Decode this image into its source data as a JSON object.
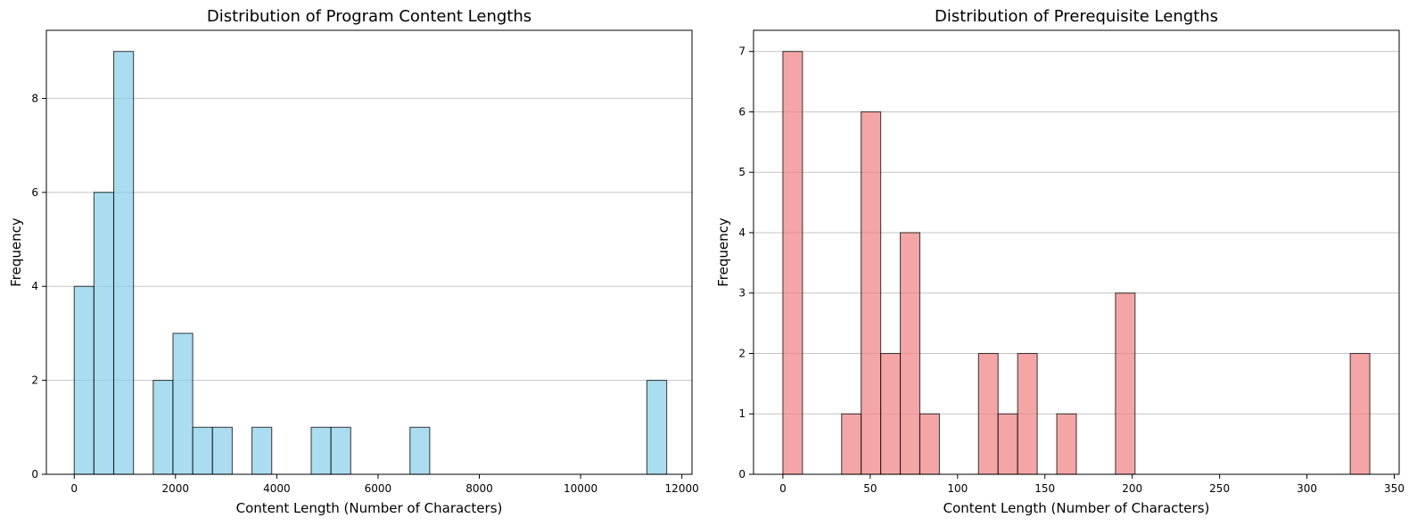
{
  "chart_data": [
    {
      "type": "bar",
      "title": "Distribution of Program Content Lengths",
      "xlabel": "Content Length (Number of Characters)",
      "ylabel": "Frequency",
      "xlim": [
        -550,
        12200
      ],
      "ylim": [
        0,
        9.45
      ],
      "xticks": [
        0,
        2000,
        4000,
        6000,
        8000,
        10000,
        12000
      ],
      "yticks": [
        0,
        2,
        4,
        6,
        8
      ],
      "grid": "y",
      "bar_color": "#87CEEB",
      "edge_color": "#000000",
      "bins": [
        {
          "x0": 0,
          "x1": 390,
          "count": 4
        },
        {
          "x0": 390,
          "x1": 780,
          "count": 6
        },
        {
          "x0": 780,
          "x1": 1170,
          "count": 9
        },
        {
          "x0": 1560,
          "x1": 1950,
          "count": 2
        },
        {
          "x0": 1950,
          "x1": 2340,
          "count": 3
        },
        {
          "x0": 2340,
          "x1": 2730,
          "count": 1
        },
        {
          "x0": 2730,
          "x1": 3120,
          "count": 1
        },
        {
          "x0": 3510,
          "x1": 3900,
          "count": 1
        },
        {
          "x0": 4680,
          "x1": 5070,
          "count": 1
        },
        {
          "x0": 5070,
          "x1": 5460,
          "count": 1
        },
        {
          "x0": 6630,
          "x1": 7020,
          "count": 1
        },
        {
          "x0": 11310,
          "x1": 11700,
          "count": 2
        }
      ]
    },
    {
      "type": "bar",
      "title": "Distribution of Prerequisite Lengths",
      "xlabel": "Content Length (Number of Characters)",
      "ylabel": "Frequency",
      "xlim": [
        -16.8,
        352.8
      ],
      "ylim": [
        0,
        7.35
      ],
      "xticks": [
        0,
        50,
        100,
        150,
        200,
        250,
        300,
        350
      ],
      "yticks": [
        0,
        1,
        2,
        3,
        4,
        5,
        6,
        7
      ],
      "grid": "y",
      "bar_color": "#F08080",
      "edge_color": "#000000",
      "bins": [
        {
          "x0": 0,
          "x1": 11.2,
          "count": 7
        },
        {
          "x0": 33.6,
          "x1": 44.8,
          "count": 1
        },
        {
          "x0": 44.8,
          "x1": 56,
          "count": 6
        },
        {
          "x0": 56,
          "x1": 67.2,
          "count": 2
        },
        {
          "x0": 67.2,
          "x1": 78.4,
          "count": 4
        },
        {
          "x0": 78.4,
          "x1": 89.6,
          "count": 1
        },
        {
          "x0": 112,
          "x1": 123.2,
          "count": 2
        },
        {
          "x0": 123.2,
          "x1": 134.4,
          "count": 1
        },
        {
          "x0": 134.4,
          "x1": 145.6,
          "count": 2
        },
        {
          "x0": 156.8,
          "x1": 168,
          "count": 1
        },
        {
          "x0": 190.4,
          "x1": 201.6,
          "count": 3
        },
        {
          "x0": 324.8,
          "x1": 336,
          "count": 2
        }
      ]
    }
  ]
}
